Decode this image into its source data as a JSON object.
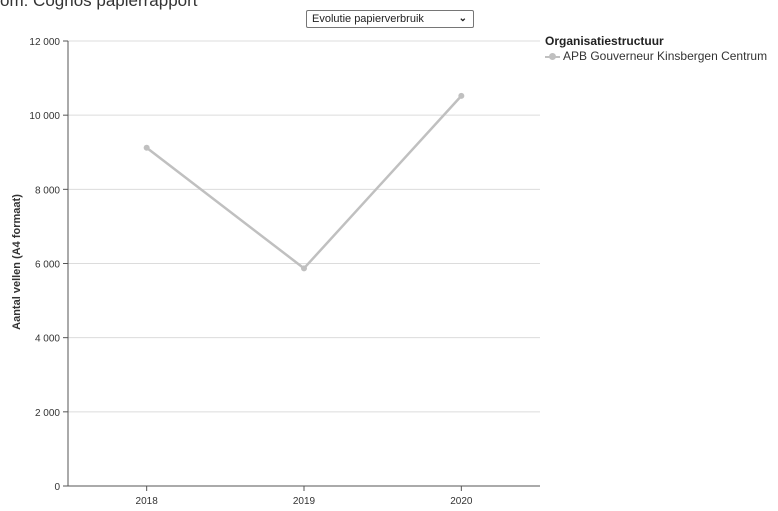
{
  "page": {
    "heading": "om: Cognos papierrapport"
  },
  "selector": {
    "selected": "Evolutie papierverbruik"
  },
  "legend": {
    "title": "Organisatiestructuur",
    "items": [
      {
        "label": "APB Gouverneur Kinsbergen Centrum",
        "color": "#c0c0c0"
      }
    ]
  },
  "chart_data": {
    "type": "line",
    "categories": [
      "2018",
      "2019",
      "2020"
    ],
    "series": [
      {
        "name": "APB Gouverneur Kinsbergen Centrum",
        "values": [
          9120,
          5870,
          10520
        ],
        "color": "#c0c0c0"
      }
    ],
    "ylabel": "Aantal vellen (A4 formaat)",
    "xlabel": "",
    "ylim": [
      0,
      12000
    ],
    "yticks": [
      0,
      2000,
      4000,
      6000,
      8000,
      10000,
      12000
    ],
    "ytick_labels": [
      "0",
      "2 000",
      "4 000",
      "6 000",
      "8 000",
      "10 000",
      "12 000"
    ],
    "grid": true,
    "legend_position": "top-right"
  }
}
